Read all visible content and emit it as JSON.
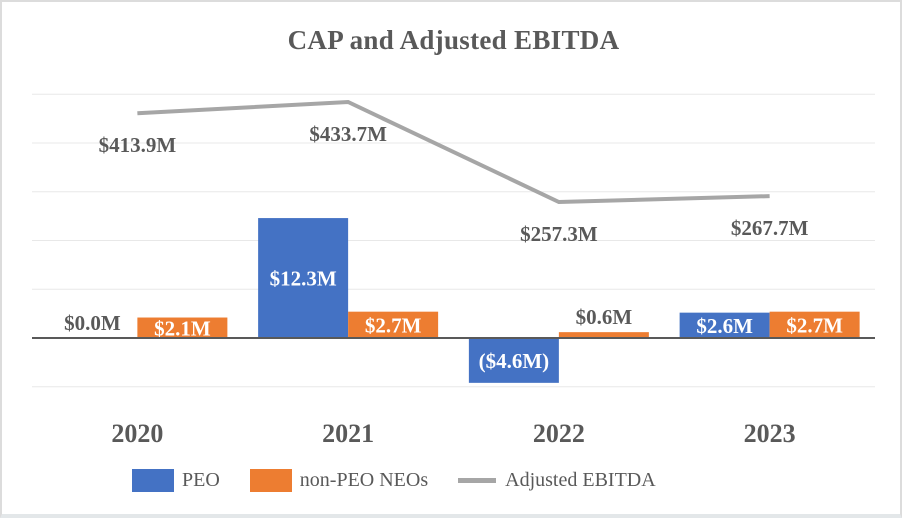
{
  "frame": {
    "background": "#ffffff",
    "border_color": "#dcdcdc"
  },
  "chart_data": {
    "type": "combo-bar-line",
    "title": "CAP and Adjusted EBITDA",
    "categories": [
      "2020",
      "2021",
      "2022",
      "2023"
    ],
    "unit": "$M",
    "gridlines": true,
    "legend_position": "bottom",
    "bar_axis": {
      "min": -5,
      "max": 25,
      "gridline_step_m": 5
    },
    "series": [
      {
        "name": "PEO",
        "type": "bar",
        "color": "#4472C4",
        "values": [
          0.0,
          12.3,
          -4.6,
          2.6
        ],
        "data_labels": [
          "$0.0M",
          "$12.3M",
          "($4.6M)",
          "$2.6M"
        ],
        "label_placement": [
          "outside",
          "inside",
          "inside",
          "inside"
        ]
      },
      {
        "name": "non-PEO NEOs",
        "type": "bar",
        "color": "#ED7D31",
        "values": [
          2.1,
          2.7,
          0.6,
          2.7
        ],
        "data_labels": [
          "$2.1M",
          "$2.7M",
          "$0.6M",
          "$2.7M"
        ],
        "label_placement": [
          "inside",
          "inside",
          "outside",
          "inside"
        ]
      },
      {
        "name": "Adjusted EBITDA",
        "type": "line",
        "color": "#A6A6A6",
        "values": [
          413.9,
          433.7,
          257.3,
          267.7
        ],
        "data_labels": [
          "$413.9M",
          "$433.7M",
          "$257.3M",
          "$267.7M"
        ]
      }
    ],
    "styles": {
      "text_color": "#595959",
      "inside_label_color": "#FFFFFF",
      "gridline_color": "#E8E8E8",
      "axis_color": "#595959"
    }
  },
  "legend": {
    "items": [
      {
        "label": "PEO",
        "marker": "swatch",
        "color": "#4472C4"
      },
      {
        "label": "non-PEO NEOs",
        "marker": "swatch",
        "color": "#ED7D31"
      },
      {
        "label": "Adjusted EBITDA",
        "marker": "line",
        "color": "#A6A6A6"
      }
    ]
  }
}
